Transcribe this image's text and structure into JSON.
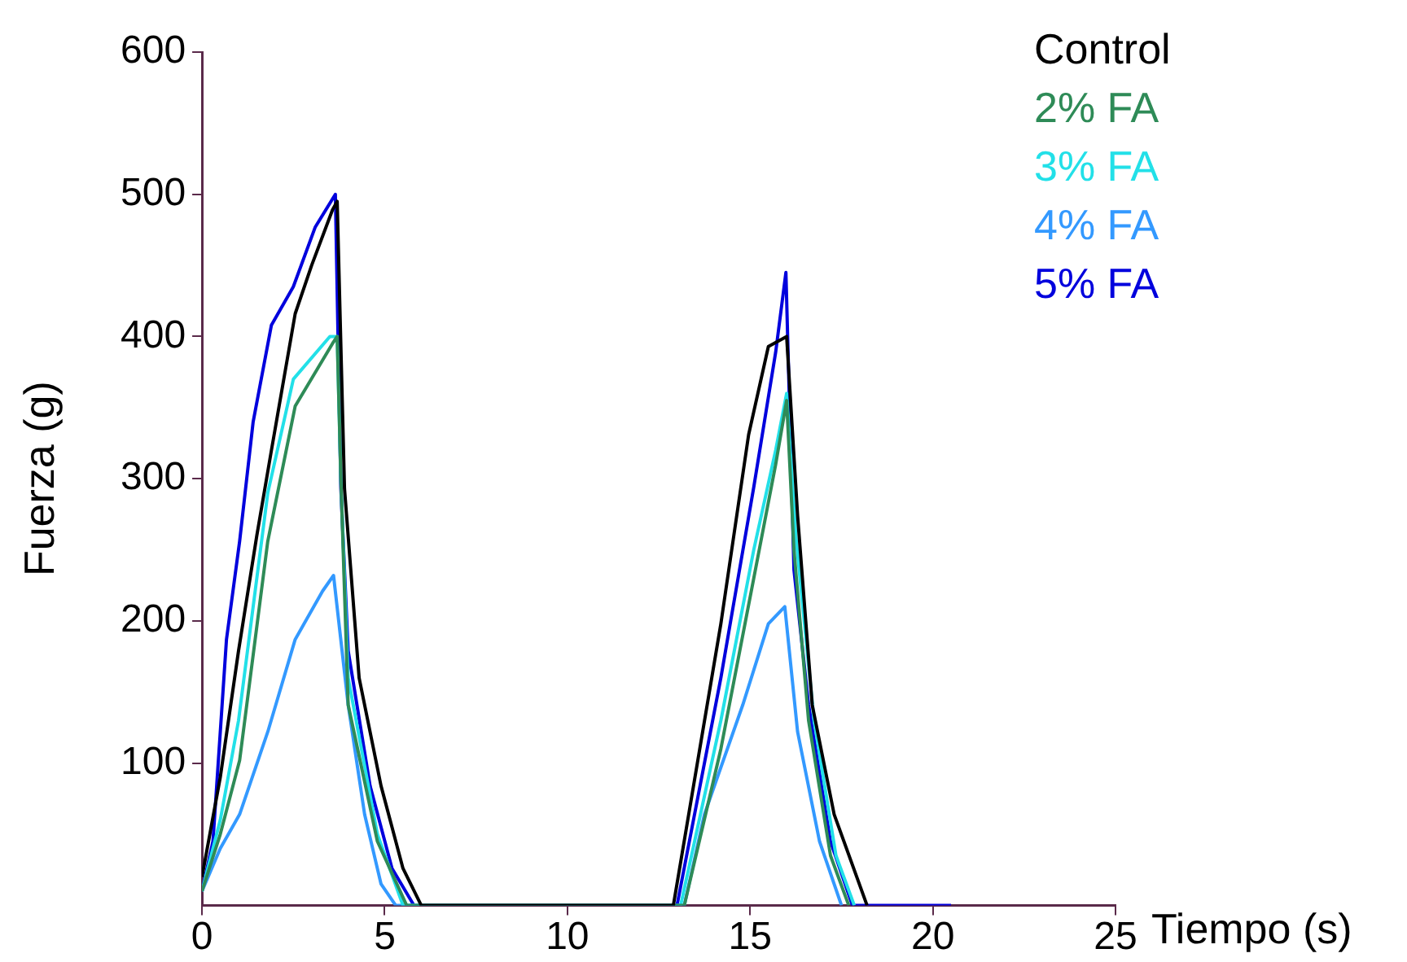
{
  "chart_data": {
    "type": "line",
    "xlabel": "Tiempo (s)",
    "ylabel": "Fuerza (g)",
    "xlim": [
      0,
      25
    ],
    "xticks": [
      0,
      5,
      10,
      15,
      20,
      25
    ],
    "ylim": [
      0,
      600
    ],
    "yticks": [
      100,
      200,
      300,
      400,
      500,
      600
    ],
    "grid": false,
    "legend": "top right",
    "marker": "none",
    "line_style": "solid",
    "series": [
      {
        "name": "Control",
        "color": "#000000",
        "x": [
          0,
          0.5,
          1,
          1.5,
          1.9,
          2.55,
          3,
          3.57,
          3.7,
          3.9,
          4.3,
          4.9,
          5.5,
          6,
          12.9,
          14.2,
          14.96,
          15.5,
          16,
          16.3,
          16.7,
          17.3,
          18.2
        ],
        "values": [
          20,
          90,
          179,
          260,
          320,
          416,
          450,
          489,
          495,
          293,
          160,
          84,
          26,
          0,
          0,
          198,
          331,
          393,
          400,
          274,
          141,
          64,
          0
        ]
      },
      {
        "name": "2% FA",
        "color": "#2e8b57",
        "x": [
          0,
          0.5,
          1.03,
          1.8,
          2.55,
          3.57,
          3.7,
          3.8,
          4,
          4.8,
          5.6,
          13.2,
          14.2,
          15.1,
          15.7,
          16,
          16.2,
          16.6,
          17.2,
          17.7
        ],
        "values": [
          10,
          50,
          102,
          256,
          351,
          395,
          400,
          300,
          141,
          45,
          0,
          0,
          110,
          230,
          310,
          355,
          250,
          130,
          35,
          0
        ]
      },
      {
        "name": "3% FA",
        "color": "#22e0e8",
        "x": [
          0,
          0.5,
          1,
          1.8,
          2.5,
          3.5,
          3.7,
          3.8,
          4,
          4.8,
          5.5,
          13.1,
          14.2,
          15.1,
          15.7,
          16,
          16.25,
          16.75,
          17.35,
          17.85
        ],
        "values": [
          10,
          60,
          130,
          290,
          370,
          400,
          400,
          300,
          160,
          50,
          0,
          0,
          130,
          250,
          320,
          360,
          260,
          130,
          35,
          0
        ]
      },
      {
        "name": "4% FA",
        "color": "#3399ff",
        "x": [
          0,
          0.5,
          1.03,
          1.8,
          2.55,
          3.3,
          3.6,
          4,
          4.45,
          4.9,
          5.3,
          13.2,
          13.75,
          14.8,
          15.5,
          15.95,
          16.3,
          16.9,
          17.5
        ],
        "values": [
          10,
          40,
          64,
          122,
          187,
          221,
          232,
          141,
          64,
          15,
          0,
          0,
          64,
          141,
          198,
          210,
          122,
          45,
          0
        ]
      },
      {
        "name": "5% FA",
        "color": "#0000dd",
        "x": [
          0,
          0.3,
          0.67,
          1.03,
          1.4,
          1.9,
          2.5,
          3.1,
          3.65,
          3.8,
          4,
          4.6,
          5.2,
          5.8,
          13,
          14.2,
          15.1,
          15.7,
          15.98,
          16.2,
          16.6,
          17.2,
          17.8,
          20.5
        ],
        "values": [
          10,
          45,
          187,
          256,
          340,
          408,
          435,
          477,
          500,
          293,
          179,
          84,
          26,
          0,
          0,
          160,
          294,
          389,
          445,
          236,
          141,
          45,
          0,
          0
        ]
      }
    ]
  }
}
